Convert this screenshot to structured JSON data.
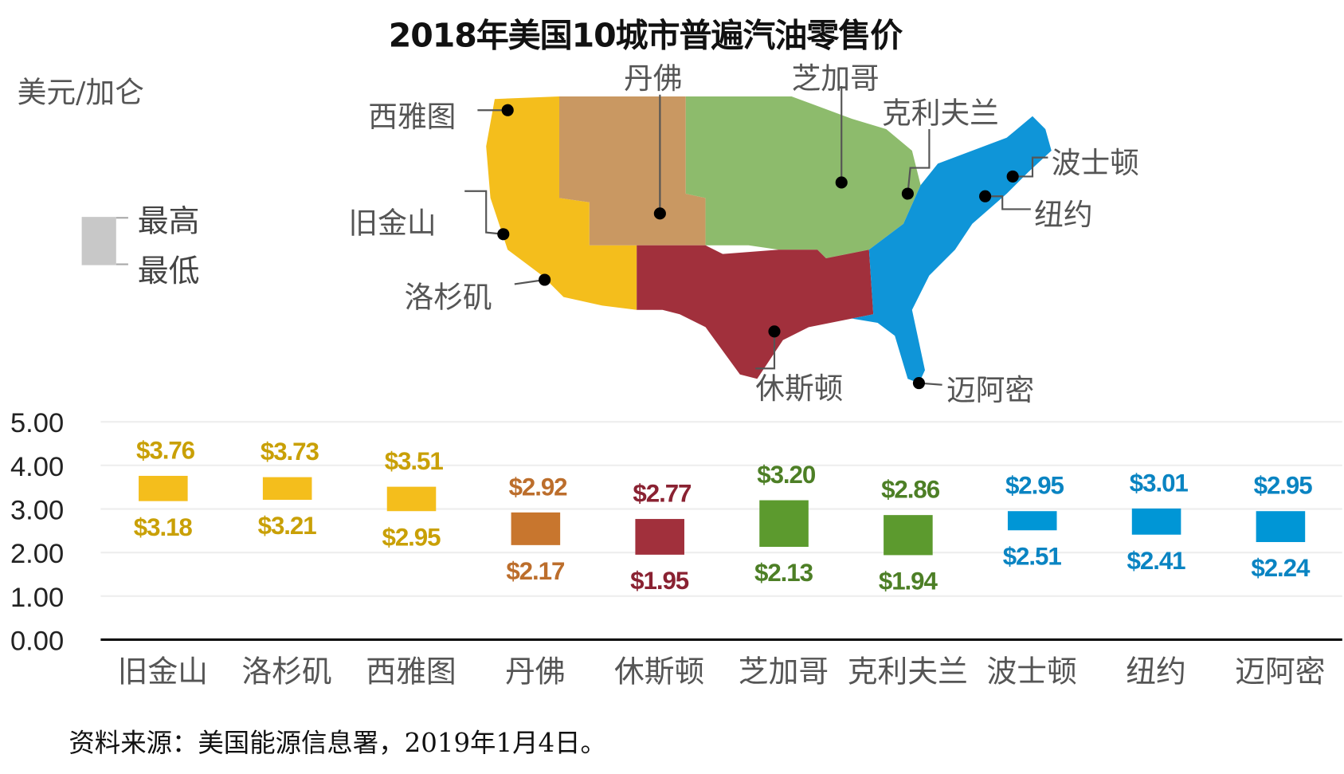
{
  "chart_data": {
    "type": "bar",
    "subtype": "floating-range",
    "title": "2018年美国10城市普遍汽油零售价",
    "ylabel": "美元/加仑",
    "ylim": [
      0,
      5
    ],
    "yticks": [
      "0.00",
      "1.00",
      "2.00",
      "3.00",
      "4.00",
      "5.00"
    ],
    "grid": true,
    "legend": {
      "high_label": "最高",
      "low_label": "最低",
      "placement": "left",
      "color": "#c8c8c8"
    },
    "categories": [
      "旧金山",
      "洛杉矶",
      "西雅图",
      "丹佛",
      "休斯顿",
      "芝加哥",
      "克利夫兰",
      "波士顿",
      "纽约",
      "迈阿密"
    ],
    "high": [
      3.76,
      3.73,
      3.51,
      2.92,
      2.77,
      3.2,
      2.86,
      2.95,
      3.01,
      2.95
    ],
    "low": [
      3.18,
      3.21,
      2.95,
      2.17,
      1.95,
      2.13,
      1.94,
      2.51,
      2.41,
      2.24
    ],
    "high_labels": [
      "$3.76",
      "$3.73",
      "$3.51",
      "$2.92",
      "$2.77",
      "$3.20",
      "$2.86",
      "$2.95",
      "$3.01",
      "$2.95"
    ],
    "low_labels": [
      "$3.18",
      "$3.21",
      "$2.95",
      "$2.17",
      "$1.95",
      "$2.13",
      "$1.94",
      "$2.51",
      "$2.41",
      "$2.24"
    ],
    "regions": [
      "west",
      "west",
      "west",
      "rocky",
      "gulf",
      "midwest",
      "midwest",
      "east",
      "east",
      "east"
    ],
    "colors": {
      "west": {
        "bar": "#F4BE1C",
        "label": "#C9A006"
      },
      "rocky": {
        "bar": "#C8762E",
        "label": "#BC6E2C"
      },
      "gulf": {
        "bar": "#A1303C",
        "label": "#8A2232"
      },
      "midwest": {
        "bar": "#5C9A2E",
        "label": "#4D7F26"
      },
      "east": {
        "bar": "#0096D6",
        "label": "#0A84C2"
      }
    }
  },
  "map": {
    "cities": [
      "西雅图",
      "旧金山",
      "洛杉矶",
      "丹佛",
      "芝加哥",
      "克利夫兰",
      "波士顿",
      "纽约",
      "休斯顿",
      "迈阿密"
    ]
  },
  "source": "资料来源：美国能源信息署，2019年1月4日。"
}
